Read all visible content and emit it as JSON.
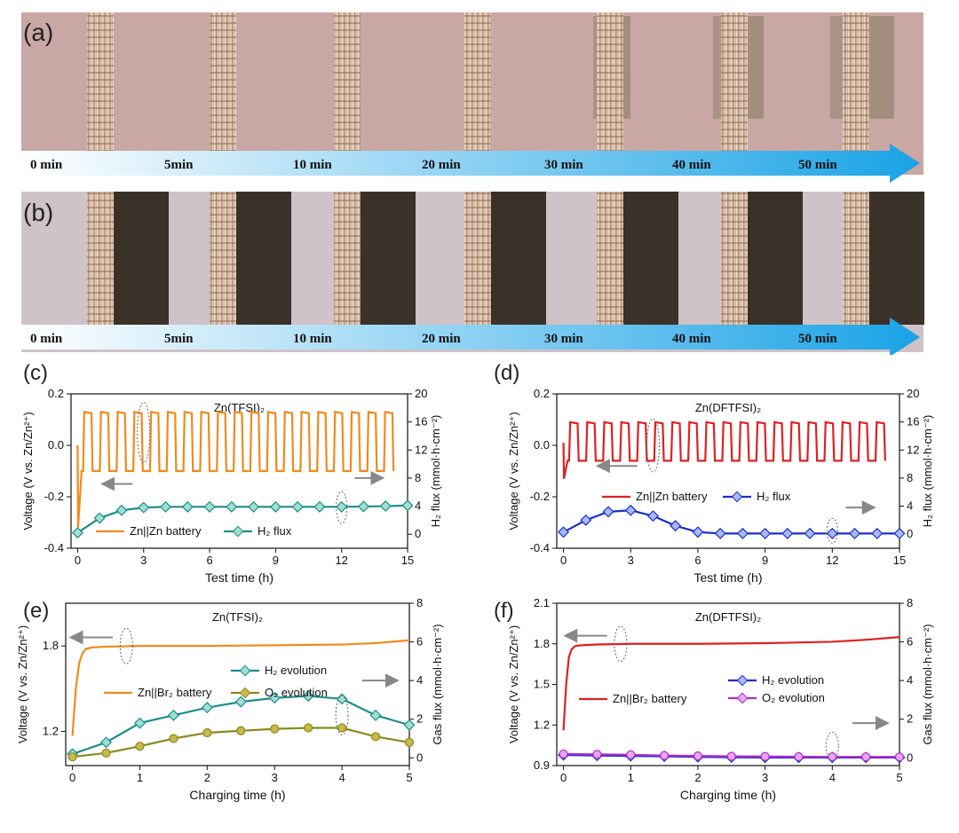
{
  "panels": {
    "a": {
      "label": "(a)",
      "times": [
        "0 min",
        "5min",
        "10 min",
        "20 min",
        "30 min",
        "40 min",
        "50 min"
      ],
      "background": "#c9a7a4",
      "arrow_colors": [
        "#ffffff",
        "#1aa3e6"
      ]
    },
    "b": {
      "label": "(b)",
      "times": [
        "0 min",
        "5min",
        "10 min",
        "20 min",
        "30 min",
        "40 min",
        "50 min"
      ],
      "background": "#cfc2c8",
      "dark": "#3a3129",
      "arrow_colors": [
        "#ffffff",
        "#1aa3e6"
      ]
    }
  },
  "chart_data": [
    {
      "id": "c",
      "panel_label": "(c)",
      "type": "line",
      "title": "Zn(TFSI)₂",
      "xlabel": "Test time (h)",
      "ylabel_left": "Voltage (V vs. Zn/Zn²⁺)",
      "ylabel_right": "H₂ flux (mmol·h·cm⁻²)",
      "xlim": [
        -0.3,
        15
      ],
      "ylim_left": [
        -0.4,
        0.2
      ],
      "ylim_right": [
        -2,
        20
      ],
      "xticks": [
        "0",
        "3",
        "6",
        "9",
        "12",
        "15"
      ],
      "yticks_left": [
        "-0.4",
        "-0.2",
        "0.0",
        "0.2"
      ],
      "yticks_right": [
        "0",
        "4",
        "8",
        "12",
        "16",
        "20"
      ],
      "series": [
        {
          "name": "Zn||Zn battery",
          "axis": "left",
          "color": "#f08a1c",
          "kind": "square-wave",
          "cycle_h": 0.76,
          "cycles": 19,
          "high": 0.13,
          "low": -0.1,
          "start_v": 0.0,
          "first_low": -0.32
        },
        {
          "name": "H₂ flux",
          "axis": "right",
          "color": "#1e8c8c",
          "marker_fill": "#9fe0d0",
          "x": [
            0,
            1,
            2,
            3,
            4,
            5,
            6,
            7,
            8,
            9,
            10,
            11,
            12,
            13,
            14,
            15
          ],
          "y": [
            0.2,
            2.3,
            3.4,
            3.8,
            3.9,
            3.9,
            3.9,
            3.9,
            3.9,
            3.9,
            3.9,
            3.9,
            3.9,
            3.95,
            4.0,
            4.1
          ]
        }
      ],
      "legend": "bottom"
    },
    {
      "id": "d",
      "panel_label": "(d)",
      "type": "line",
      "title": "Zn(DFTFSI)₂",
      "xlabel": "Test time (h)",
      "ylabel_left": "Voltage (V vs. Zn/Zn²⁺)",
      "ylabel_right": "H₂ flux (mmol·h·cm⁻²)",
      "xlim": [
        -0.3,
        15
      ],
      "ylim_left": [
        -0.4,
        0.2
      ],
      "ylim_right": [
        -2,
        20
      ],
      "xticks": [
        "0",
        "3",
        "6",
        "9",
        "12",
        "15"
      ],
      "yticks_left": [
        "-0.4",
        "-0.2",
        "0.0",
        "0.2"
      ],
      "yticks_right": [
        "0",
        "4",
        "8",
        "12",
        "16",
        "20"
      ],
      "series": [
        {
          "name": "Zn||Zn battery",
          "axis": "left",
          "color": "#e02020",
          "kind": "square-wave",
          "cycle_h": 0.76,
          "cycles": 19,
          "high": 0.09,
          "low": -0.06,
          "start_v": 0.01,
          "first_low": -0.13
        },
        {
          "name": "H₂ flux",
          "axis": "right",
          "color": "#1a2fc8",
          "marker_fill": "#a8b8ff",
          "x": [
            0,
            1,
            2,
            3,
            4,
            5,
            6,
            7,
            8,
            9,
            10,
            11,
            12,
            13,
            14,
            15
          ],
          "y": [
            0.3,
            2.0,
            3.2,
            3.4,
            2.6,
            1.2,
            0.3,
            0.1,
            0.1,
            0.1,
            0.1,
            0.1,
            0.1,
            0.1,
            0.1,
            0.1
          ]
        }
      ],
      "legend": "middle"
    },
    {
      "id": "e",
      "panel_label": "(e)",
      "type": "line",
      "title": "Zn(TFSI)₂",
      "xlabel": "Charging time (h)",
      "ylabel_left": "Voltage (V vs. Zn/Zn²⁺)",
      "ylabel_right": "Gas flux (mmol·h·cm⁻²)",
      "xlim": [
        -0.1,
        5
      ],
      "ylim_left": [
        0.96,
        2.1
      ],
      "ylim_right": [
        -0.4,
        8
      ],
      "xticks": [
        "0",
        "1",
        "2",
        "3",
        "4",
        "5"
      ],
      "yticks_left": [
        "1.2",
        "1.8"
      ],
      "yticks_right": [
        "0",
        "2",
        "4",
        "6",
        "8"
      ],
      "series": [
        {
          "name": "Zn||Br₂ battery",
          "axis": "left",
          "color": "#f08a1c",
          "x": [
            0,
            0.05,
            0.1,
            0.15,
            0.2,
            0.3,
            0.5,
            1,
            2,
            3,
            4,
            4.5,
            5
          ],
          "y": [
            1.17,
            1.5,
            1.68,
            1.75,
            1.78,
            1.79,
            1.795,
            1.8,
            1.8,
            1.805,
            1.81,
            1.82,
            1.84
          ]
        },
        {
          "name": "H₂ evolution",
          "axis": "right",
          "color": "#1e8c8c",
          "marker_fill": "#9fe0d0",
          "x": [
            0,
            0.5,
            1,
            1.5,
            2,
            2.5,
            3,
            3.5,
            4,
            4.5,
            5
          ],
          "y": [
            0.2,
            0.8,
            1.8,
            2.2,
            2.6,
            2.9,
            3.1,
            3.2,
            3.05,
            2.2,
            1.7
          ]
        },
        {
          "name": "O₂ evolution",
          "axis": "right",
          "color": "#8a8a1e",
          "marker_fill": "#c9b84a",
          "x": [
            0,
            0.5,
            1,
            1.5,
            2,
            2.5,
            3,
            3.5,
            4,
            4.5,
            5
          ],
          "y": [
            0.05,
            0.25,
            0.6,
            1.0,
            1.3,
            1.4,
            1.5,
            1.55,
            1.55,
            1.1,
            0.8
          ]
        }
      ],
      "legend": "middle"
    },
    {
      "id": "f",
      "panel_label": "(f)",
      "type": "line",
      "title": "Zn(DFTFSI)₂",
      "xlabel": "Charging time (h)",
      "ylabel_left": "Voltage (V vs. Zn/Zn²⁺)",
      "ylabel_right": "Gas flux (mmol·h·cm⁻²)",
      "xlim": [
        -0.1,
        5
      ],
      "ylim_left": [
        0.9,
        2.1
      ],
      "ylim_right": [
        -0.4,
        8
      ],
      "xticks": [
        "0",
        "1",
        "2",
        "3",
        "4",
        "5"
      ],
      "yticks_left": [
        "0.9",
        "1.2",
        "1.5",
        "1.8",
        "2.1"
      ],
      "yticks_right": [
        "0",
        "2",
        "4",
        "6",
        "8"
      ],
      "series": [
        {
          "name": "Zn||Br₂ battery",
          "axis": "left",
          "color": "#e02020",
          "x": [
            0,
            0.04,
            0.08,
            0.12,
            0.18,
            0.3,
            0.5,
            1,
            2,
            3,
            4,
            4.5,
            5
          ],
          "y": [
            1.16,
            1.5,
            1.7,
            1.76,
            1.785,
            1.79,
            1.795,
            1.8,
            1.8,
            1.805,
            1.815,
            1.83,
            1.85
          ]
        },
        {
          "name": "H₂ evolution",
          "axis": "right",
          "color": "#1a2fc8",
          "marker_fill": "#a8b8ff",
          "x": [
            0,
            0.5,
            1,
            1.5,
            2,
            2.5,
            3,
            3.5,
            4,
            4.5,
            5
          ],
          "y": [
            0.15,
            0.12,
            0.1,
            0.08,
            0.05,
            0.03,
            0.02,
            0.02,
            0.02,
            0.02,
            0.02
          ]
        },
        {
          "name": "O₂ evolution",
          "axis": "right",
          "color": "#b02cc8",
          "marker_fill": "#e7a5f5",
          "x": [
            0,
            0.5,
            1,
            1.5,
            2,
            2.5,
            3,
            3.5,
            4,
            4.5,
            5
          ],
          "y": [
            0.2,
            0.18,
            0.16,
            0.12,
            0.1,
            0.08,
            0.07,
            0.06,
            0.05,
            0.05,
            0.05
          ]
        }
      ],
      "legend": "middle"
    }
  ]
}
